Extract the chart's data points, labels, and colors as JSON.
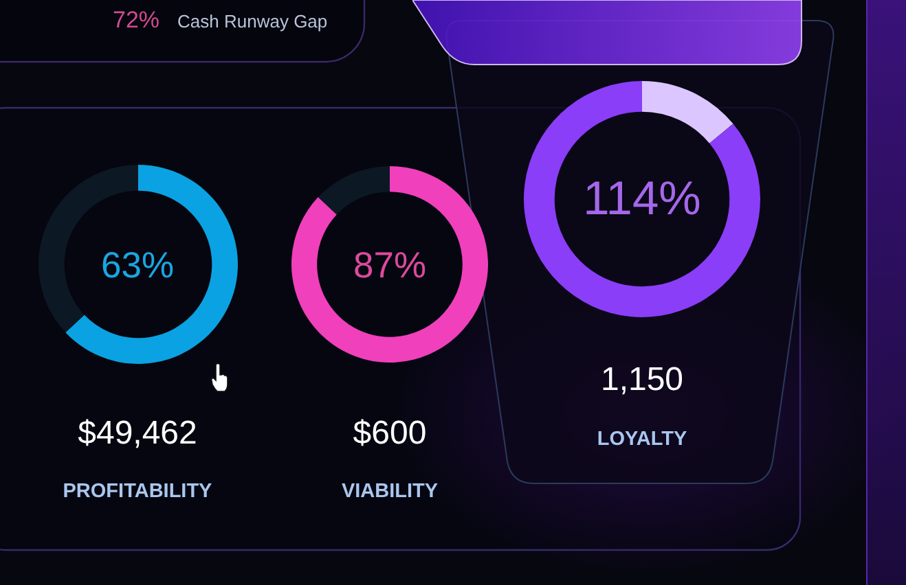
{
  "chart_data": [
    {
      "type": "other",
      "annotations": [
        "72%",
        "Cash Runway Gap"
      ]
    },
    {
      "type": "donut",
      "title": "PROFITABILITY",
      "categories": [
        null,
        null
      ],
      "values": [
        63,
        37
      ],
      "colors": [
        "#0aa2e2",
        "#0c1824"
      ],
      "annotations": [
        "63%",
        "$49,462"
      ]
    },
    {
      "type": "donut",
      "title": "VIABILITY",
      "categories": [
        null,
        null
      ],
      "values": [
        87,
        13
      ],
      "colors": [
        "#f040bc",
        "#0c1824"
      ],
      "annotations": [
        "87%",
        "$600"
      ]
    },
    {
      "type": "donut",
      "title": "LOYALTY",
      "categories": [
        null,
        null
      ],
      "values": [
        14,
        86
      ],
      "colors": [
        "#dcc6ff",
        "#8a3ef8"
      ],
      "annotations": [
        "114%",
        "1,150"
      ]
    }
  ]
}
